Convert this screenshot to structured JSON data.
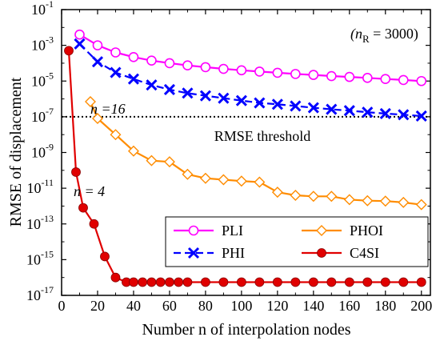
{
  "chart_data": {
    "type": "line",
    "title": "",
    "xlabel": "Number n of interpolation nodes",
    "ylabel": "RMSE of displacement",
    "yscale": "log",
    "xlim": [
      0,
      205
    ],
    "ylim_exp": [
      -17,
      -1
    ],
    "xticks": [
      0,
      20,
      40,
      60,
      80,
      100,
      120,
      140,
      160,
      180,
      200
    ],
    "yticks_exp": [
      -17,
      -15,
      -13,
      -11,
      -9,
      -7,
      -5,
      -3,
      -1
    ],
    "tick_base": "10",
    "grid": false,
    "legend_position": "bottom-right",
    "series": [
      {
        "name": "PLI",
        "color": "#ff00ff",
        "marker": "circle-open",
        "line": "solid",
        "x": [
          10,
          20,
          30,
          40,
          50,
          60,
          70,
          80,
          90,
          100,
          110,
          120,
          130,
          140,
          150,
          160,
          170,
          180,
          190,
          200
        ],
        "y": [
          0.004,
          0.001,
          0.0004,
          0.00022,
          0.00014,
          0.0001,
          7.5e-05,
          6e-05,
          4.8e-05,
          4e-05,
          3.4e-05,
          2.9e-05,
          2.5e-05,
          2.2e-05,
          1.9e-05,
          1.7e-05,
          1.5e-05,
          1.3e-05,
          1.15e-05,
          1e-05
        ]
      },
      {
        "name": "PHI",
        "color": "#0000ff",
        "marker": "x",
        "line": "dashed",
        "x": [
          10,
          20,
          30,
          40,
          50,
          60,
          70,
          80,
          90,
          100,
          110,
          120,
          130,
          140,
          150,
          160,
          170,
          180,
          190,
          200
        ],
        "y": [
          0.0012,
          0.00012,
          3e-05,
          1.3e-05,
          6e-06,
          3.3e-06,
          2.1e-06,
          1.5e-06,
          1.1e-06,
          8e-07,
          6e-07,
          5e-07,
          4e-07,
          3.2e-07,
          2.6e-07,
          2.2e-07,
          1.8e-07,
          1.5e-07,
          1.3e-07,
          1.1e-07
        ]
      },
      {
        "name": "PHOI",
        "color": "#ff8c00",
        "marker": "diamond-open",
        "line": "solid",
        "x": [
          16,
          20,
          30,
          40,
          50,
          60,
          70,
          80,
          90,
          100,
          110,
          120,
          130,
          140,
          150,
          160,
          170,
          180,
          190,
          200
        ],
        "y": [
          7e-07,
          8e-08,
          1e-08,
          1.2e-09,
          3.5e-10,
          3e-10,
          6e-11,
          3.6e-11,
          3e-11,
          2.5e-11,
          2.2e-11,
          6e-12,
          4e-12,
          3.5e-12,
          3.5e-12,
          2.3e-12,
          2e-12,
          1.9e-12,
          1.6e-12,
          1.2e-12
        ]
      },
      {
        "name": "C4SI",
        "color": "#e00000",
        "marker": "circle-filled",
        "line": "solid",
        "x": [
          4,
          8,
          12,
          18,
          24,
          30,
          36,
          40,
          45,
          50,
          55,
          60,
          65,
          70,
          80,
          90,
          100,
          110,
          120,
          130,
          140,
          150,
          160,
          170,
          180,
          190,
          200
        ],
        "y": [
          0.0005,
          8e-11,
          8e-13,
          1e-13,
          1.5e-15,
          1e-16,
          5.5e-17,
          5.5e-17,
          5.5e-17,
          5.5e-17,
          5.5e-17,
          5.5e-17,
          5.5e-17,
          5.5e-17,
          5.5e-17,
          5.5e-17,
          5.5e-17,
          5.5e-17,
          5.5e-17,
          5.5e-17,
          5.5e-17,
          5.5e-17,
          5.5e-17,
          5.5e-17,
          5.5e-17,
          5.5e-17,
          5.5e-17
        ]
      }
    ],
    "threshold": {
      "value": 1e-07,
      "label": "RMSE threshold",
      "color": "#000000",
      "line": "dotted"
    },
    "annotations": {
      "param_prefix": "(n",
      "param_sub": "R",
      "param_suffix": " = 3000)",
      "n16_label": "n =16",
      "n16_color": "#ff8c00",
      "n4_label": "n = 4",
      "n4_color": "#e00000"
    }
  }
}
